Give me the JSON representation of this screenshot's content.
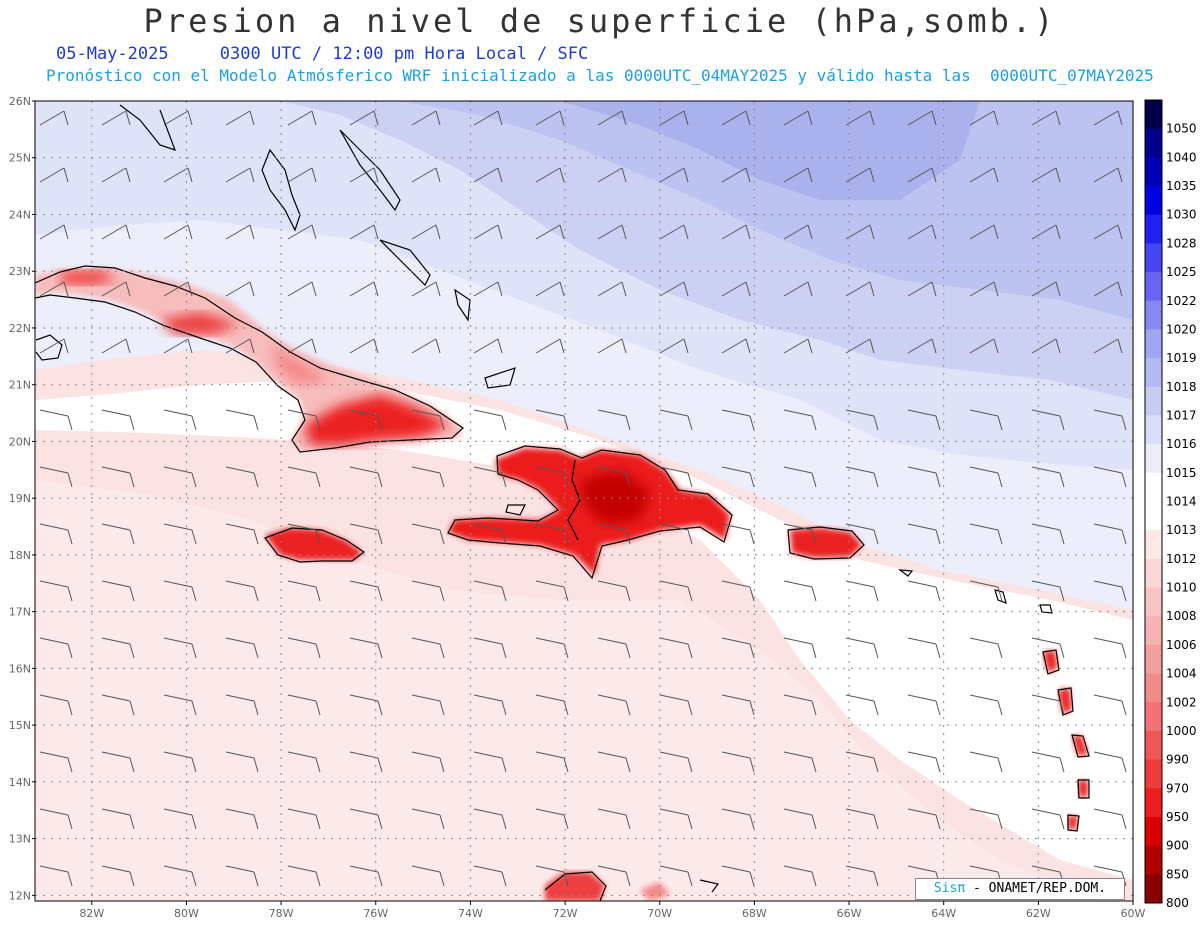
{
  "header": {
    "title": "Presion a nivel de superficie (hPa,somb.)",
    "date": "05-May-2025",
    "time_info": "0300 UTC / 12:00 pm Hora Local / SFC",
    "model_info": "Pronóstico con el Modelo Atmósferico WRF inicializado a las 0000UTC_04MAY2025 y válido hasta las  0000UTC_07MAY2025"
  },
  "map": {
    "lat_labels": [
      "26N",
      "25N",
      "24N",
      "23N",
      "22N",
      "21N",
      "20N",
      "19N",
      "18N",
      "17N",
      "16N",
      "15N",
      "14N",
      "13N",
      "12N"
    ],
    "lon_labels": [
      "82W",
      "80W",
      "78W",
      "76W",
      "74W",
      "72W",
      "70W",
      "68W",
      "66W",
      "64W",
      "62W",
      "60W"
    ],
    "background_colors": {
      "high_1016": "#dfe3f7",
      "high_1017": "#c9cff3",
      "high_1018": "#b7bff0",
      "high_1019": "#aab3ed",
      "neutral_1013": "#ffffff",
      "low_1012": "#fbe3e3",
      "land_low": "#ef1a1a"
    },
    "wind_barbs": "gray wind barbs plotted on a regular grid"
  },
  "colorbar": {
    "levels": [
      "1050",
      "1040",
      "1035",
      "1030",
      "1028",
      "1025",
      "1022",
      "1020",
      "1019",
      "1018",
      "1017",
      "1016",
      "1015",
      "1014",
      "1013",
      "1012",
      "1010",
      "1008",
      "1006",
      "1004",
      "1002",
      "1000",
      "990",
      "970",
      "950",
      "900",
      "850",
      "800"
    ],
    "colors": [
      "#00004a",
      "#00008b",
      "#0000b4",
      "#0000e0",
      "#2020f0",
      "#4545f2",
      "#6666f3",
      "#8888f2",
      "#a0a6f2",
      "#b3b9f2",
      "#c7ccf5",
      "#dadef8",
      "#ececfb",
      "#ffffff",
      "#ffffff",
      "#fde8e8",
      "#fbd7d7",
      "#f8c4c4",
      "#f7b2b2",
      "#f5a0a0",
      "#f38b8b",
      "#f17373",
      "#ef5757",
      "#ee3b3b",
      "#ec1f1f",
      "#d90000",
      "#b20000",
      "#8a0000"
    ]
  },
  "credit": {
    "sis": "Sisπ",
    "org": " - ONAMET/REP.DOM."
  }
}
